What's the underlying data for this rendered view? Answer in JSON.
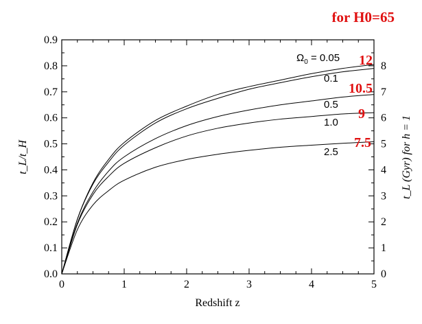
{
  "header": {
    "note": "for H0=65"
  },
  "chart_data": {
    "type": "line",
    "title": "",
    "xlabel": "Redshift z",
    "ylabel": "t_L/t_H",
    "ylabel_right": "t_L (Gyr) for h = 1",
    "xlim": [
      0,
      5
    ],
    "ylim": [
      0,
      0.9
    ],
    "y2lim": [
      0,
      9
    ],
    "xticks": [
      "0",
      "1",
      "2",
      "3",
      "4",
      "5"
    ],
    "yticks": [
      "0.0",
      "0.1",
      "0.2",
      "0.3",
      "0.4",
      "0.5",
      "0.6",
      "0.7",
      "0.8",
      "0.9"
    ],
    "y2ticks": [
      "0",
      "1",
      "2",
      "3",
      "4",
      "5",
      "6",
      "7",
      "8"
    ],
    "grid": false,
    "x": [
      0,
      0.25,
      0.5,
      0.75,
      1,
      1.5,
      2,
      2.5,
      3,
      3.5,
      4,
      4.5,
      5
    ],
    "series": [
      {
        "name": "Ω0 = 0.05",
        "values": [
          0,
          0.21,
          0.35,
          0.44,
          0.505,
          0.59,
          0.645,
          0.69,
          0.72,
          0.745,
          0.77,
          0.79,
          0.805
        ]
      },
      {
        "name": "0.1",
        "values": [
          0,
          0.21,
          0.345,
          0.43,
          0.495,
          0.58,
          0.635,
          0.675,
          0.71,
          0.735,
          0.758,
          0.777,
          0.79
        ]
      },
      {
        "name": "0.5",
        "values": [
          0,
          0.195,
          0.315,
          0.395,
          0.45,
          0.52,
          0.57,
          0.605,
          0.63,
          0.65,
          0.665,
          0.68,
          0.69
        ]
      },
      {
        "name": "1.0",
        "values": [
          0,
          0.19,
          0.305,
          0.375,
          0.425,
          0.485,
          0.53,
          0.56,
          0.58,
          0.595,
          0.605,
          0.615,
          0.62
        ]
      },
      {
        "name": "2.5",
        "values": [
          0,
          0.17,
          0.265,
          0.32,
          0.36,
          0.41,
          0.44,
          0.46,
          0.475,
          0.487,
          0.495,
          0.502,
          0.508
        ]
      }
    ],
    "labels": {
      "omega_prefix": "Ω",
      "omega_sub": "0",
      "first": " = 0.05",
      "others": [
        "0.1",
        "0.5",
        "1.0",
        "2.5"
      ]
    },
    "red_annotations": [
      "12",
      "10.5",
      "9",
      "7.5"
    ]
  }
}
